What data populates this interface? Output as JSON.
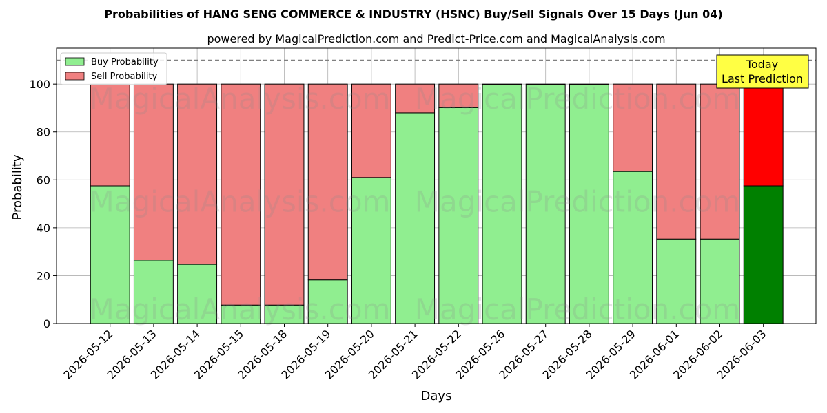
{
  "chart_data": {
    "type": "bar",
    "stacked": true,
    "title": "Probabilities of HANG SENG COMMERCE & INDUSTRY (HSNC) Buy/Sell Signals Over 15 Days (Jun 04)",
    "subtitle": "powered by MagicalPrediction.com and Predict-Price.com and MagicalAnalysis.com",
    "xlabel": "Days",
    "ylabel": "Probability",
    "ylim": [
      0,
      115
    ],
    "yticks": [
      0,
      20,
      40,
      60,
      80,
      100
    ],
    "grid": true,
    "legend_position": "top-left",
    "categories": [
      "2026-05-12",
      "2026-05-13",
      "2026-05-14",
      "2026-05-15",
      "2026-05-18",
      "2026-05-19",
      "2026-05-20",
      "2026-05-21",
      "2026-05-22",
      "2026-05-26",
      "2026-05-27",
      "2026-05-28",
      "2026-05-29",
      "2026-06-01",
      "2026-06-02",
      "2026-06-03"
    ],
    "series": [
      {
        "name": "Buy Probability",
        "color": "#90ee90",
        "values": [
          57.5,
          26.5,
          24.7,
          7.7,
          7.7,
          18.2,
          61.0,
          88.0,
          90.2,
          99.7,
          99.7,
          99.7,
          63.5,
          35.3,
          35.3,
          57.5
        ]
      },
      {
        "name": "Sell Probability",
        "color": "#f08080",
        "values": [
          42.5,
          73.5,
          75.3,
          92.3,
          92.3,
          81.8,
          39.0,
          12.0,
          9.8,
          0.3,
          0.3,
          0.3,
          36.5,
          64.7,
          64.7,
          42.5
        ]
      }
    ],
    "highlight": {
      "index": 15,
      "buy_color": "#008000",
      "sell_color": "#ff0000"
    },
    "reference_line": {
      "y": 110,
      "style": "dashed",
      "color": "#808080"
    },
    "annotation": {
      "line1": "Today",
      "line2": "Last Prediction",
      "background": "#ffff44"
    },
    "watermarks": [
      "MagicalAnalysis.com",
      "MagicalPrediction.com"
    ]
  }
}
